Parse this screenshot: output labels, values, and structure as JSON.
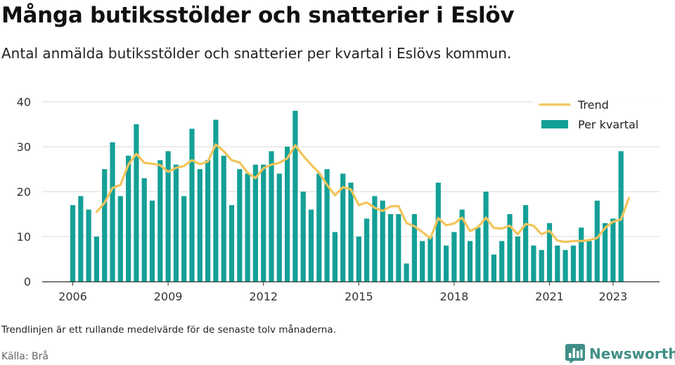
{
  "title": "Många butiksstölder och snatterier i Eslöv",
  "subtitle": "Antal anmälda butiksstölder och snatterier per kvartal i Eslövs kommun.",
  "note": "Trendlinjen är ett rullande medelvärde för de senaste tolv månaderna.",
  "source": "Källa: Brå",
  "brand": "Newsworthy",
  "colors": {
    "bar": "#14a097",
    "trend": "#f2c45a",
    "grid": "#d9d9d9",
    "axis": "#333333",
    "brand": "#3f8f86"
  },
  "chart_data": {
    "type": "bar",
    "title": "",
    "xlabel": "",
    "ylabel": "",
    "ylim": [
      0,
      40
    ],
    "yticks": [
      0,
      10,
      20,
      30,
      40
    ],
    "xticks": [
      {
        "label": "2006",
        "index": 0
      },
      {
        "label": "2009",
        "index": 12
      },
      {
        "label": "2012",
        "index": 24
      },
      {
        "label": "2015",
        "index": 36
      },
      {
        "label": "2018",
        "index": 48
      },
      {
        "label": "2021",
        "index": 60
      },
      {
        "label": "2023",
        "index": 68
      }
    ],
    "grid": true,
    "legend_position": "top-right",
    "series": [
      {
        "name": "Per kvartal",
        "kind": "bar",
        "values": [
          17,
          19,
          16,
          10,
          25,
          31,
          19,
          28,
          35,
          23,
          18,
          27,
          29,
          26,
          19,
          34,
          25,
          27,
          36,
          28,
          17,
          25,
          24,
          26,
          26,
          29,
          24,
          30,
          38,
          20,
          16,
          24,
          25,
          11,
          24,
          22,
          10,
          14,
          19,
          18,
          15,
          15,
          4,
          15,
          9,
          10,
          22,
          8,
          11,
          16,
          9,
          12,
          20,
          6,
          9,
          15,
          10,
          17,
          8,
          7,
          13,
          8,
          7,
          8,
          12,
          9,
          18,
          13,
          14,
          29
        ]
      },
      {
        "name": "Trend",
        "kind": "line",
        "start_index": 3,
        "values": [
          15.5,
          17.5,
          20.8,
          21.5,
          26.0,
          28.4,
          26.4,
          26.2,
          25.9,
          24.4,
          25.3,
          25.7,
          27.0,
          26.1,
          26.7,
          30.5,
          29.0,
          27.0,
          26.5,
          24.2,
          23.0,
          25.2,
          26.0,
          26.4,
          27.4,
          30.3,
          28.0,
          26.0,
          24.2,
          21.5,
          19.2,
          21.0,
          20.5,
          17.0,
          17.6,
          16.4,
          15.7,
          16.7,
          16.8,
          13.0,
          12.3,
          11.0,
          9.6,
          14.1,
          12.5,
          12.9,
          14.2,
          11.2,
          12.1,
          14.2,
          11.9,
          11.8,
          12.4,
          10.5,
          12.8,
          12.4,
          10.5,
          11.3,
          9.1,
          8.8,
          9.0,
          9.0,
          9.2,
          9.7,
          11.9,
          13.3,
          13.8,
          18.6
        ]
      }
    ]
  }
}
